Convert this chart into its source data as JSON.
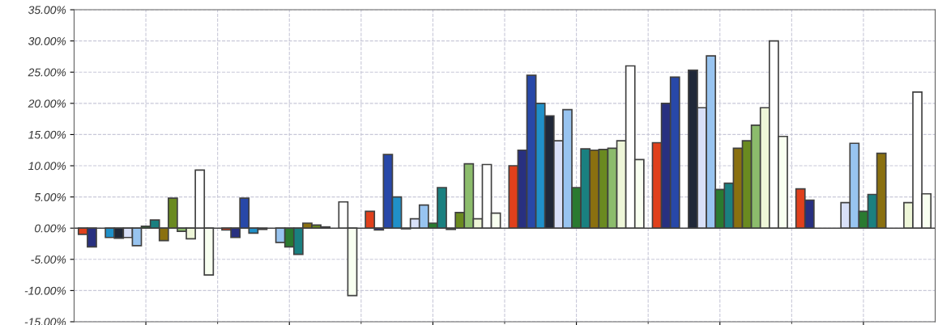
{
  "chart_data": {
    "type": "bar",
    "categories": [
      null,
      null,
      null,
      null,
      null,
      null
    ],
    "series": [
      {
        "color": "#e0401c",
        "values": [
          -1,
          -0.3,
          2.7,
          10,
          13.7,
          6.3
        ]
      },
      {
        "color": "#283080",
        "values": [
          -3,
          -1.5,
          -0.3,
          12.5,
          20,
          4.5
        ]
      },
      {
        "color": "#2848a8",
        "values": [
          null,
          4.8,
          11.8,
          24.5,
          24.2,
          null
        ]
      },
      {
        "color": "#2090c8",
        "values": [
          -1.5,
          -0.8,
          5,
          20,
          null,
          null
        ]
      },
      {
        "color": "#202838",
        "values": [
          -1.6,
          -0.2,
          -0.1,
          18,
          25.3,
          null
        ]
      },
      {
        "color": "#d8e0f8",
        "values": [
          -1.5,
          null,
          1.5,
          14,
          19.3,
          4.1
        ]
      },
      {
        "color": "#98c4f0",
        "values": [
          -2.8,
          -2.3,
          3.7,
          19,
          27.6,
          13.6
        ]
      },
      {
        "color": "#2a7a30",
        "values": [
          0.3,
          -3,
          0.8,
          6.5,
          6.2,
          2.7
        ]
      },
      {
        "color": "#1a8080",
        "values": [
          1.3,
          -4.2,
          6.5,
          12.7,
          7.2,
          5.4
        ]
      },
      {
        "color": "#8a7010",
        "values": [
          -2,
          0.8,
          -0.2,
          12.5,
          12.8,
          12
        ]
      },
      {
        "color": "#6a8a20",
        "values": [
          4.8,
          0.5,
          2.5,
          12.6,
          14,
          null
        ]
      },
      {
        "color": "#8cbc6c",
        "values": [
          -0.5,
          0.2,
          10.3,
          12.8,
          16.5,
          null
        ]
      },
      {
        "color": "#eef6d8",
        "values": [
          -1.7,
          null,
          1.5,
          14,
          19.3,
          4.1
        ]
      },
      {
        "color": "#ffffff",
        "values": [
          9.3,
          4.2,
          10.2,
          26,
          30,
          21.8
        ]
      },
      {
        "color": "#f8fff0",
        "values": [
          -7.5,
          -10.8,
          2.4,
          11,
          14.7,
          5.5
        ]
      }
    ],
    "ylim": [
      -15,
      35
    ],
    "yticks": [
      {
        "value": -15,
        "label": "-15.00%"
      },
      {
        "value": -10,
        "label": "-10.00%"
      },
      {
        "value": -5,
        "label": "-5.00%"
      },
      {
        "value": 0,
        "label": "0.00%"
      },
      {
        "value": 5,
        "label": "5.00%"
      },
      {
        "value": 10,
        "label": "10.00%"
      },
      {
        "value": 15,
        "label": "15.00%"
      },
      {
        "value": 20,
        "label": "20.00%"
      },
      {
        "value": 25,
        "label": "25.00%"
      },
      {
        "value": 30,
        "label": "30.00%"
      },
      {
        "value": 35,
        "label": "35.00%"
      }
    ],
    "grid": true,
    "tick_labels": "y"
  }
}
